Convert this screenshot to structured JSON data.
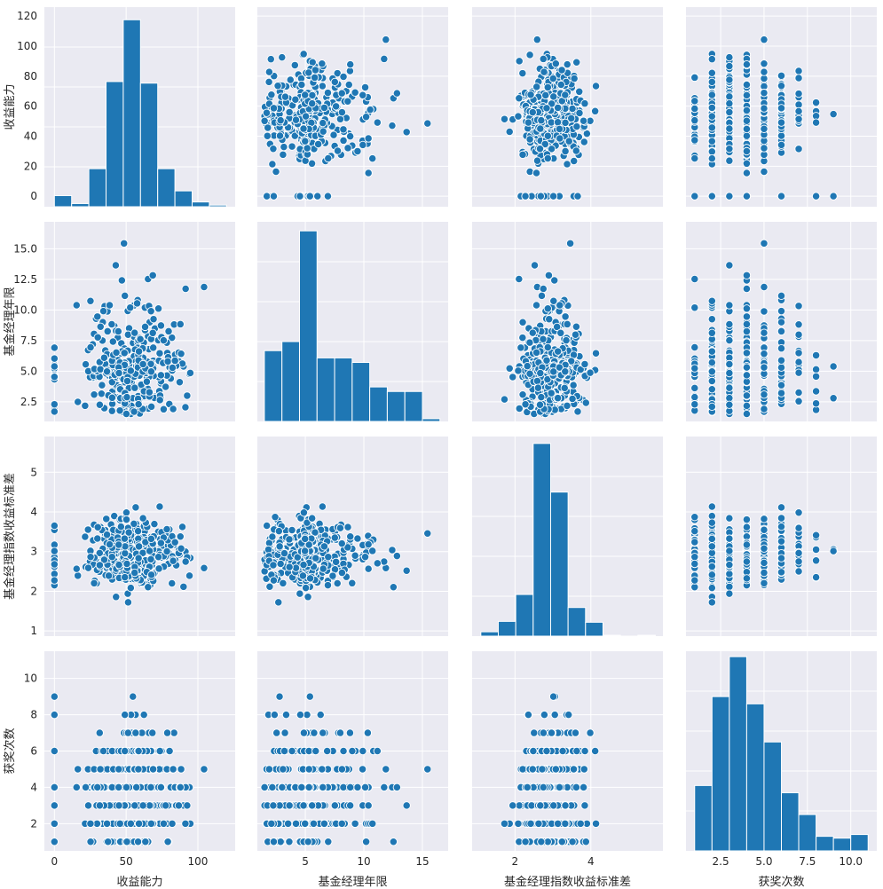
{
  "chart_data": {
    "type": "pairplot",
    "variables": [
      "收益能力",
      "基金经理年限",
      "基金经理指数收益标准差",
      "获奖次数"
    ],
    "x_label_display": [
      "收益能力",
      "基金经理年限",
      "基金经理指数收益标准差",
      "获奖次数"
    ],
    "y_label_display": [
      "收益能力",
      "基金经理年限",
      "基金经理指数收益标准差",
      "获奖次数"
    ],
    "colors": {
      "marker": "#1f77b4",
      "panel": "#eaeaf2",
      "grid": "#ffffff"
    },
    "axes": [
      {
        "name": "收益能力",
        "lim": [
          -7,
          126
        ],
        "ticks": [
          0,
          20,
          40,
          60,
          80,
          100,
          120
        ],
        "tick_labels": [
          "0",
          "20",
          "40",
          "60",
          "80",
          "100",
          "120"
        ],
        "x_ticks": [
          0,
          50,
          100
        ],
        "x_tick_labels": [
          "0",
          "50",
          "100"
        ]
      },
      {
        "name": "基金经理年限",
        "lim": [
          0.9,
          17.2
        ],
        "ticks": [
          2.5,
          5.0,
          7.5,
          10.0,
          12.5,
          15.0
        ],
        "tick_labels": [
          "2.5",
          "5.0",
          "7.5",
          "10.0",
          "12.5",
          "15.0"
        ],
        "x_ticks": [
          5,
          10,
          15
        ],
        "x_tick_labels": [
          "5",
          "10",
          "15"
        ]
      },
      {
        "name": "基金经理指数收益标准差",
        "lim": [
          0.87,
          5.9
        ],
        "ticks": [
          1,
          2,
          3,
          4,
          5
        ],
        "tick_labels": [
          "1",
          "2",
          "3",
          "4",
          "5"
        ],
        "x_ticks": [
          2,
          4
        ],
        "x_tick_labels": [
          "2",
          "4"
        ]
      },
      {
        "name": "获奖次数",
        "lim": [
          0.5,
          11.5
        ],
        "ticks": [
          2,
          4,
          6,
          8,
          10
        ],
        "tick_labels": [
          "2",
          "4",
          "6",
          "8",
          "10"
        ],
        "x_ticks": [
          2.5,
          5.0,
          7.5,
          10.0
        ],
        "x_tick_labels": [
          "2.5",
          "5.0",
          "7.5",
          "10.0"
        ]
      }
    ],
    "histograms": [
      {
        "variable": "收益能力",
        "bins": [
          0,
          12,
          24,
          36,
          48,
          60,
          72,
          84,
          96,
          108,
          120
        ],
        "counts": [
          7,
          2,
          24,
          79,
          118,
          78,
          24,
          10,
          3,
          1
        ],
        "display_max": 126
      },
      {
        "variable": "基金经理年限",
        "bins": [
          1.5,
          3.0,
          4.5,
          6.0,
          7.5,
          9.0,
          10.5,
          12.0,
          13.5,
          15.0,
          16.5
        ],
        "counts": [
          78,
          88,
          210,
          70,
          70,
          65,
          38,
          33,
          33,
          3
        ],
        "display_max": 220
      },
      {
        "variable": "基金经理指数收益标准差",
        "bins": [
          1.1,
          1.56,
          2.02,
          2.48,
          2.94,
          3.4,
          3.86,
          4.32,
          4.78,
          5.24,
          5.7
        ],
        "counts": [
          5,
          17,
          48,
          222,
          166,
          33,
          16,
          1,
          0,
          1
        ],
        "display_max": 230
      },
      {
        "variable": "获奖次数",
        "bins": [
          1,
          2,
          3,
          4,
          5,
          6,
          7,
          8,
          9,
          10,
          11
        ],
        "counts": [
          36,
          85,
          107,
          81,
          60,
          32,
          20,
          8,
          7,
          9
        ],
        "display_max": 110
      }
    ],
    "scatter_n": 420
  }
}
